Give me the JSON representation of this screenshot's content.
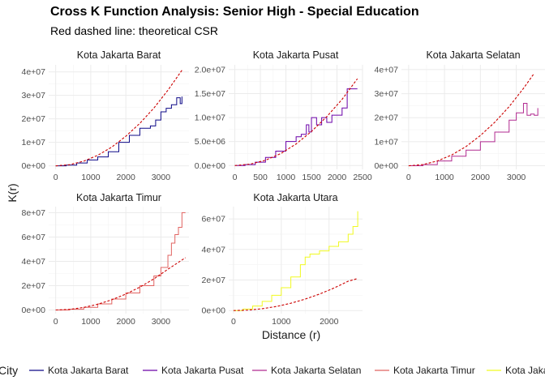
{
  "header": {
    "title": "Cross K Function Analysis: Senior High - Special Education",
    "subtitle": "Red dashed line: theoretical CSR"
  },
  "colors": {
    "csr": "#cc0000",
    "grid": "#ebebeb",
    "Kota Jakarta Barat": "#0d0887",
    "Kota Jakarta Pusat": "#6a00a8",
    "Kota Jakarta Selatan": "#b12a90",
    "Kota Jakarta Timur": "#e16462",
    "Kota Jakarta Utara": "#f0f921"
  },
  "chart_data": {
    "type": "line",
    "facet": "City",
    "xlabel": "Distance (r)",
    "ylabel": "K(r)",
    "legend": {
      "title": "City",
      "position": "bottom",
      "entries": [
        "Kota Jakarta Barat",
        "Kota Jakarta Pusat",
        "Kota Jakarta Selatan",
        "Kota Jakarta Timur",
        "Kota Jakarta Utara"
      ]
    },
    "panels": [
      {
        "name": "Kota Jakarta Barat",
        "xlim": [
          -200,
          3800
        ],
        "ylim": [
          -1500000,
          43000000
        ],
        "xticks": [
          0,
          1000,
          2000,
          3000
        ],
        "xtick_labels": [
          "0",
          "1000",
          "2000",
          "3000"
        ],
        "yticks": [
          0,
          10000000,
          20000000,
          30000000,
          40000000
        ],
        "ytick_labels": [
          "0e+00",
          "1e+07",
          "2e+07",
          "3e+07",
          "4e+07"
        ],
        "observed": {
          "x": [
            0,
            300,
            600,
            900,
            1200,
            1500,
            1800,
            2100,
            2400,
            2700,
            2850,
            3000,
            3150,
            3300,
            3450,
            3550,
            3600
          ],
          "y": [
            0,
            300000,
            1200000,
            2500000,
            3800000,
            6000000,
            10000000,
            13000000,
            16000000,
            17000000,
            19500000,
            23000000,
            24500000,
            26000000,
            29000000,
            26500000,
            29500000
          ]
        },
        "csr": {
          "x": [
            0,
            400,
            800,
            1200,
            1600,
            2000,
            2400,
            2800,
            3200,
            3600
          ],
          "y": [
            0,
            500000,
            2000000,
            4500000,
            8000000,
            12600000,
            18100000,
            24600000,
            32200000,
            40700000
          ]
        }
      },
      {
        "name": "Kota Jakarta Pusat",
        "xlim": [
          -120,
          2500
        ],
        "ylim": [
          -800000,
          21000000
        ],
        "xticks": [
          0,
          500,
          1000,
          1500,
          2000,
          2500
        ],
        "xtick_labels": [
          "0",
          "500",
          "1000",
          "1500",
          "2000",
          "2500"
        ],
        "yticks": [
          0,
          5000000,
          10000000,
          15000000,
          20000000
        ],
        "ytick_labels": [
          "0.0e+00",
          "5.0e+06",
          "1.0e+07",
          "1.5e+07",
          "2.0e+07"
        ],
        "observed": {
          "x": [
            0,
            200,
            400,
            600,
            800,
            1000,
            1100,
            1200,
            1300,
            1400,
            1450,
            1500,
            1600,
            1700,
            1800,
            1900,
            2000,
            2100,
            2200,
            2300,
            2400
          ],
          "y": [
            0,
            200000,
            700000,
            1700000,
            3000000,
            5000000,
            5000000,
            6000000,
            6500000,
            8500000,
            7000000,
            10000000,
            8500000,
            10000000,
            9000000,
            10500000,
            10500000,
            12000000,
            16000000,
            16000000,
            16000000
          ]
        },
        "csr": {
          "x": [
            0,
            300,
            600,
            900,
            1200,
            1500,
            1800,
            2100,
            2400
          ],
          "y": [
            0,
            300000,
            1100000,
            2500000,
            4500000,
            7100000,
            10200000,
            13800000,
            18100000
          ]
        }
      },
      {
        "name": "Kota Jakarta Selatan",
        "xlim": [
          -200,
          3800
        ],
        "ylim": [
          -1500000,
          42000000
        ],
        "xticks": [
          0,
          1000,
          2000,
          3000
        ],
        "xtick_labels": [
          "0",
          "1000",
          "2000",
          "3000"
        ],
        "yticks": [
          0,
          10000000,
          20000000,
          30000000,
          40000000
        ],
        "ytick_labels": [
          "0e+00",
          "1e+07",
          "2e+07",
          "3e+07",
          "4e+07"
        ],
        "observed": {
          "x": [
            0,
            400,
            800,
            1200,
            1600,
            2000,
            2400,
            2800,
            3000,
            3200,
            3300,
            3400,
            3500,
            3600
          ],
          "y": [
            0,
            500000,
            2000000,
            4000000,
            6500000,
            10000000,
            14000000,
            19000000,
            22000000,
            26000000,
            21000000,
            21500000,
            21000000,
            24000000
          ]
        },
        "csr": {
          "x": [
            0,
            400,
            800,
            1200,
            1600,
            2000,
            2400,
            2800,
            3200,
            3500
          ],
          "y": [
            0,
            500000,
            2000000,
            4500000,
            8000000,
            12600000,
            18100000,
            24600000,
            32200000,
            38500000
          ]
        }
      },
      {
        "name": "Kota Jakarta Timur",
        "xlim": [
          -200,
          3800
        ],
        "ylim": [
          -3000000,
          85000000
        ],
        "xticks": [
          0,
          1000,
          2000,
          3000
        ],
        "xtick_labels": [
          "0",
          "1000",
          "2000",
          "3000"
        ],
        "yticks": [
          0,
          20000000,
          40000000,
          60000000,
          80000000
        ],
        "ytick_labels": [
          "0e+00",
          "2e+07",
          "4e+07",
          "6e+07",
          "8e+07"
        ],
        "observed": {
          "x": [
            0,
            400,
            800,
            1200,
            1600,
            2000,
            2400,
            2800,
            3000,
            3200,
            3300,
            3400,
            3500,
            3600,
            3700
          ],
          "y": [
            0,
            600000,
            2200000,
            5000000,
            9000000,
            14000000,
            20000000,
            28000000,
            35000000,
            45000000,
            55000000,
            62000000,
            68000000,
            80000000,
            80000000
          ]
        },
        "csr": {
          "x": [
            0,
            400,
            800,
            1200,
            1600,
            2000,
            2400,
            2800,
            3200,
            3700
          ],
          "y": [
            0,
            500000,
            2100000,
            4700000,
            8400000,
            13100000,
            18800000,
            25600000,
            33500000,
            43000000
          ]
        }
      },
      {
        "name": "Kota Jakarta Utara",
        "xlim": [
          -100,
          2700
        ],
        "ylim": [
          -2000000,
          68000000
        ],
        "xticks": [
          0,
          1000,
          2000
        ],
        "xtick_labels": [
          "0",
          "1000",
          "2000"
        ],
        "yticks": [
          0,
          20000000,
          40000000,
          60000000
        ],
        "ytick_labels": [
          "0e+00",
          "2e+07",
          "4e+07",
          "6e+07"
        ],
        "observed": {
          "x": [
            0,
            200,
            400,
            600,
            800,
            1000,
            1200,
            1400,
            1500,
            1600,
            1800,
            2000,
            2200,
            2400,
            2500,
            2600
          ],
          "y": [
            0,
            1000000,
            3000000,
            6000000,
            10000000,
            15000000,
            22000000,
            30000000,
            35000000,
            37000000,
            39000000,
            42000000,
            45000000,
            50000000,
            55000000,
            65000000
          ]
        },
        "csr": {
          "x": [
            0,
            300,
            600,
            900,
            1200,
            1500,
            1800,
            2100,
            2400,
            2600
          ],
          "y": [
            0,
            300000,
            1200000,
            2700000,
            4800000,
            7500000,
            10800000,
            14700000,
            19200000,
            21000000
          ]
        }
      }
    ]
  }
}
